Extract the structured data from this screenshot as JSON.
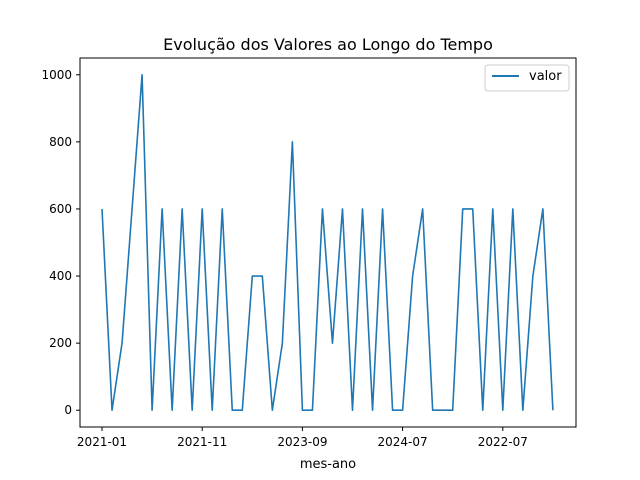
{
  "chart_data": {
    "type": "line",
    "title": "Evolução dos Valores ao Longo do Tempo",
    "xlabel": "mes-ano",
    "ylabel": "",
    "x_ticks": [
      "2021-01",
      "2021-11",
      "2023-09",
      "2024-07",
      "2022-07"
    ],
    "y_ticks": [
      0,
      200,
      400,
      600,
      800,
      1000
    ],
    "ylim": [
      -50,
      1050
    ],
    "grid": false,
    "legend_position": "top-right",
    "series": [
      {
        "name": "valor",
        "color": "#1f77b4",
        "values": [
          600,
          0,
          200,
          600,
          1000,
          0,
          600,
          0,
          600,
          0,
          600,
          0,
          600,
          0,
          0,
          400,
          400,
          0,
          200,
          800,
          0,
          0,
          600,
          200,
          600,
          0,
          600,
          0,
          600,
          0,
          0,
          400,
          600,
          0,
          0,
          0,
          600,
          600,
          0,
          600,
          0,
          600,
          0,
          400,
          600,
          0
        ]
      }
    ]
  }
}
